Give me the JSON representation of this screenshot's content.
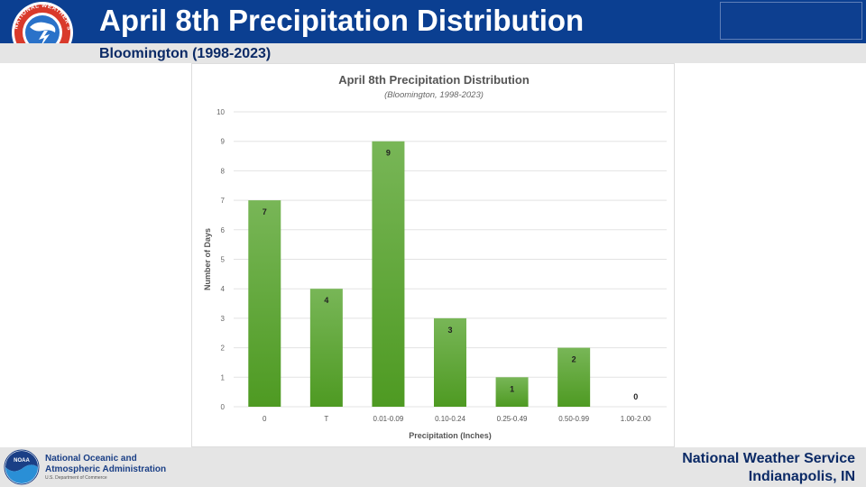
{
  "header": {
    "title": "April 8th Precipitation Distribution",
    "subtitle": "Bloomington (1998-2023)",
    "logo_text": "NATIONAL WEATHER SERVICE"
  },
  "footer": {
    "org_line1": "National Oceanic and",
    "org_line2": "Atmospheric Administration",
    "dept": "U.S. Department of Commerce",
    "noaa_logo_text": "NOAA",
    "office_line1": "National Weather Service",
    "office_line2": "Indianapolis, IN"
  },
  "colors": {
    "header_bg": "#0b3f91",
    "subtitle_text": "#0b2a66",
    "bar_green": "#5aa331",
    "grid": "#e3e3e3"
  },
  "chart_data": {
    "type": "bar",
    "title": "April 8th Precipitation Distribution",
    "subtitle": "(Bloomington, 1998-2023)",
    "xlabel": "Precipitation (Inches)",
    "ylabel": "Number of Days",
    "categories": [
      "0",
      "T",
      "0.01-0.09",
      "0.10-0.24",
      "0.25-0.49",
      "0.50-0.99",
      "1.00-2.00"
    ],
    "values": [
      7,
      4,
      9,
      3,
      1,
      2,
      0
    ],
    "ylim": [
      0,
      10
    ],
    "yticks": [
      "0",
      "1",
      "2",
      "3",
      "4",
      "5",
      "6",
      "7",
      "8",
      "9",
      "10"
    ],
    "grid": true,
    "data_labels": true,
    "legend": "none"
  }
}
